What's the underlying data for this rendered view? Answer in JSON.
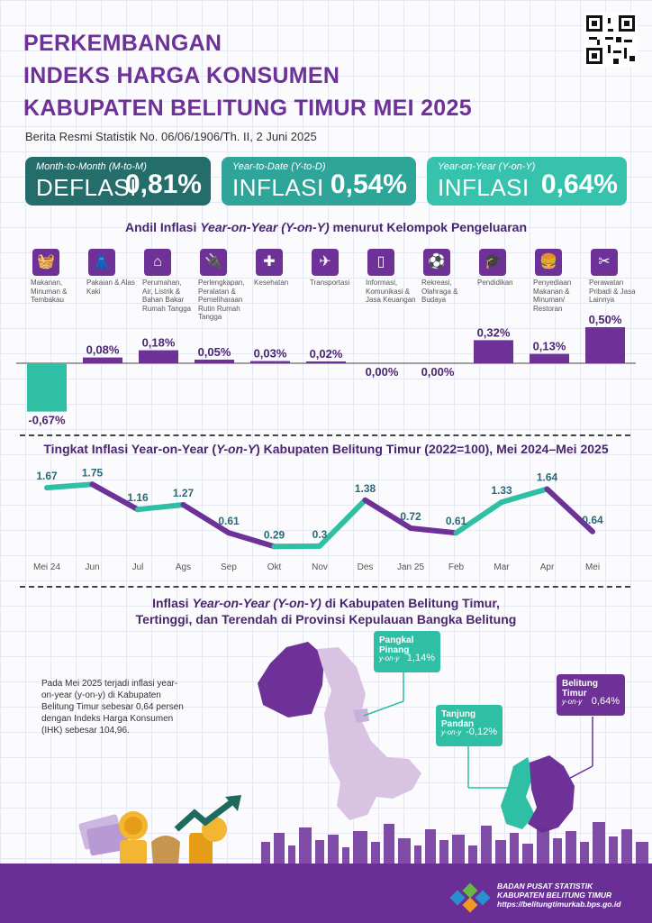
{
  "header": {
    "title_line1": "PERKEMBANGAN",
    "title_line2": "INDEKS HARGA KONSUMEN",
    "title_line3": "KABUPATEN BELITUNG TIMUR MEI 2025",
    "subtitle": "Berita Resmi Statistik No. 06/06/1906/Th. II, 2 Juni 2025"
  },
  "cards": [
    {
      "label": "Month-to-Month (M-to-M)",
      "kind": "DEFLASI",
      "value": "0,81%",
      "color": "#256d6b"
    },
    {
      "label": "Year-to-Date (Y-to-D)",
      "kind": "INFLASI",
      "value": "0,54%",
      "color": "#2fa59a"
    },
    {
      "label": "Year-on-Year (Y-on-Y)",
      "kind": "INFLASI",
      "value": "0,64%",
      "color": "#36c2ad"
    }
  ],
  "andil": {
    "heading_pre": "Andil Inflasi ",
    "heading_em": "Year-on-Year (Y-on-Y)",
    "heading_post": " menurut Kelompok Pengeluaran",
    "groups": [
      {
        "label": "Makanan, Minuman & Tembakau",
        "icon": "basket-icon"
      },
      {
        "label": "Pakaian & Alas Kaki",
        "icon": "dress-icon"
      },
      {
        "label": "Perumahan, Air, Listrik & Bahan Bakar Rumah Tangga",
        "icon": "house-icon"
      },
      {
        "label": "Perlengkapan, Peralatan & Pemeliharaan Rutin Rumah Tangga",
        "icon": "plug-icon"
      },
      {
        "label": "Kesehatan",
        "icon": "first-aid-icon"
      },
      {
        "label": "Transportasi",
        "icon": "airplane-icon"
      },
      {
        "label": "Informasi, Komunikasi & Jasa Keuangan",
        "icon": "phone-icon"
      },
      {
        "label": "Rekreasi, Olahraga & Budaya",
        "icon": "sport-icon"
      },
      {
        "label": "Pendidikan",
        "icon": "graduation-cap-icon"
      },
      {
        "label": "Penyediaan Makanan & Minuman/ Restoran",
        "icon": "fastfood-icon"
      },
      {
        "label": "Perawatan Pribadi & Jasa Lainnya",
        "icon": "scissors-comb-icon"
      }
    ]
  },
  "trend": {
    "heading_pre": "Tingkat Inflasi Year-on-Year (",
    "heading_em": "Y-on-Y",
    "heading_post": ") Kabupaten Belitung Timur (2022=100), Mei 2024–Mei 2025"
  },
  "map_section": {
    "heading_line1_pre": "Inflasi ",
    "heading_line1_em": "Year-on-Year (Y-on-Y)",
    "heading_line1_post": " di Kabupaten Belitung Timur,",
    "heading_line2": "Tertinggi, dan Terendah di Provinsi Kepulauan Bangka Belitung",
    "narrative": "Pada Mei 2025 terjadi inflasi year-on-year (y-on-y) di Kabupaten Belitung Timur sebesar 0,64 persen dengan Indeks Harga Konsumen (IHK) sebesar 104,96.",
    "callouts": [
      {
        "name": "Pangkal Pinang",
        "yoy": "y-on-y",
        "value": "1,14%"
      },
      {
        "name": "Tanjung Pandan",
        "yoy": "y-on-y",
        "value": "-0,12%"
      },
      {
        "name": "Belitung Timur",
        "yoy": "y-on-y",
        "value": "0,64%"
      }
    ]
  },
  "footer": {
    "org1": "BADAN PUSAT STATISTIK",
    "org2": "KABUPATEN BELITUNG TIMUR",
    "url": "https://belitungtimurkab.bps.go.id"
  },
  "chart_data": [
    {
      "type": "bar",
      "categories": [
        "Makanan, Minuman & Tembakau",
        "Pakaian & Alas Kaki",
        "Perumahan, Air, Listrik & Bahan Bakar Rumah Tangga",
        "Perlengkapan, Peralatan & Pemeliharaan Rutin Rumah Tangga",
        "Kesehatan",
        "Transportasi",
        "Informasi, Komunikasi & Jasa Keuangan",
        "Rekreasi, Olahraga & Budaya",
        "Pendidikan",
        "Penyediaan Makanan & Minuman/ Restoran",
        "Perawatan Pribadi & Jasa Lainnya"
      ],
      "values": [
        -0.67,
        0.08,
        0.18,
        0.05,
        0.03,
        0.02,
        0.0,
        0.0,
        0.32,
        0.13,
        0.5
      ],
      "labels": [
        "-0,67%",
        "0,08%",
        "0,18%",
        "0,05%",
        "0,03%",
        "0,02%",
        "0,00%",
        "0,00%",
        "0,32%",
        "0,13%",
        "0,50%"
      ],
      "colors": {
        "positive": "#6d3198",
        "negative": "#2ebfa5"
      }
    },
    {
      "type": "line",
      "x": [
        "Mei 24",
        "Jun",
        "Jul",
        "Ags",
        "Sep",
        "Okt",
        "Nov",
        "Des",
        "Jan 25",
        "Feb",
        "Mar",
        "Apr",
        "Mei"
      ],
      "values": [
        1.67,
        1.75,
        1.16,
        1.27,
        0.61,
        0.29,
        0.3,
        1.38,
        0.72,
        0.61,
        1.33,
        1.64,
        0.64
      ],
      "labels": [
        "1.67",
        "1.75",
        "1.16",
        "1.27",
        "0.61",
        "0.29",
        "0.3",
        "1.38",
        "0.72",
        "0.61",
        "1.33",
        "1.64",
        "0.64"
      ],
      "colors": {
        "up": "#2ebfa5",
        "down": "#6d3198"
      },
      "ylim": [
        0,
        2
      ]
    }
  ]
}
